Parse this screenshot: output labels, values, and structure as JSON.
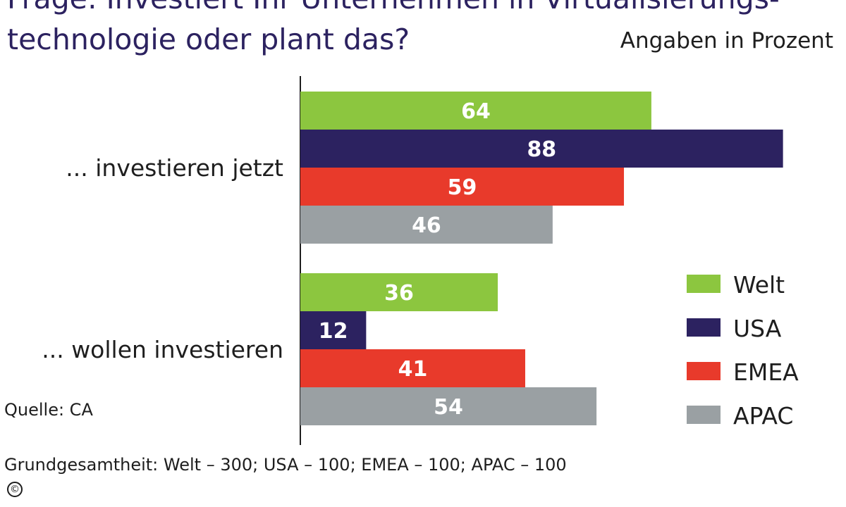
{
  "header": {
    "title_line_1": "Frage: Investiert Ihr Unternehmen in Virtualisierungs-",
    "title_line_2": "technologie oder plant das?",
    "unit_note": "Angaben in Prozent"
  },
  "footer": {
    "source": "Quelle: CA",
    "base": "Grundgesamtheit: Welt – 300; USA – 100; EMEA – 100; APAC – 100",
    "copyright_symbol": "©"
  },
  "chart_data": {
    "type": "bar",
    "orientation": "horizontal",
    "categories": [
      "... investieren jetzt",
      "... wollen investieren"
    ],
    "series": [
      {
        "name": "Welt",
        "color": "#8cc63f",
        "values": [
          64,
          36
        ]
      },
      {
        "name": "USA",
        "color": "#2c2260",
        "values": [
          88,
          12
        ]
      },
      {
        "name": "EMEA",
        "color": "#e83a2b",
        "values": [
          59,
          41
        ]
      },
      {
        "name": "APAC",
        "color": "#9aa0a3",
        "values": [
          46,
          54
        ]
      }
    ],
    "unit": "Prozent",
    "data_labels": true,
    "legend_position": "right",
    "grid": false
  }
}
